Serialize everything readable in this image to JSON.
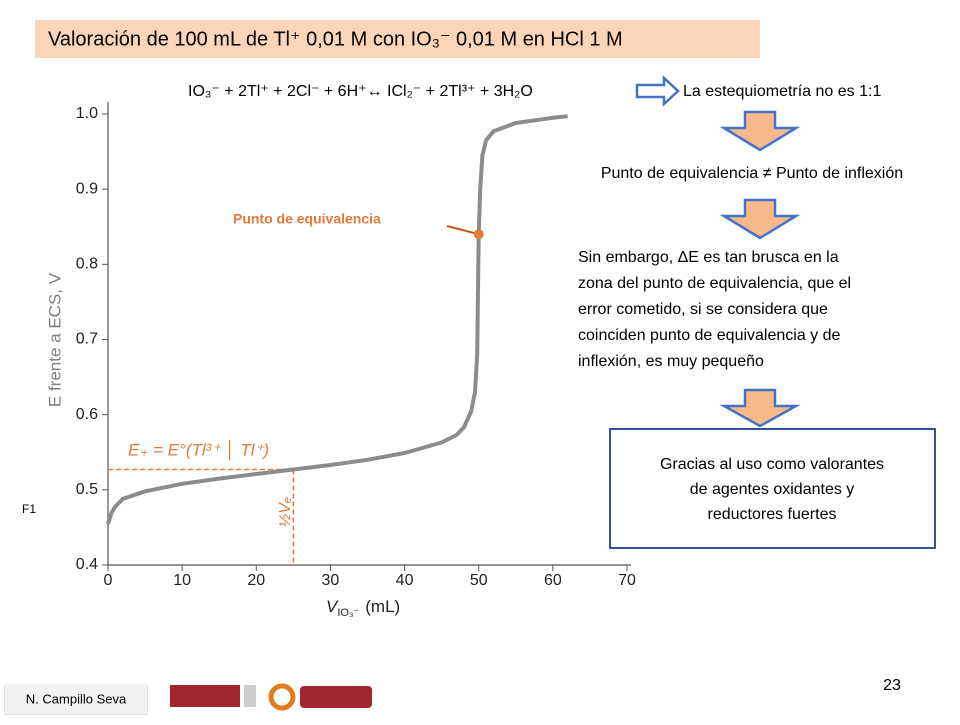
{
  "slide": {
    "title": "Valoración de 100 mL de Tl⁺ 0,01 M con IO₃⁻ 0,01 M en HCl 1 M",
    "equation": "IO₃⁻ + 2Tl⁺ + 2Cl⁻ + 6H⁺↔ ICl₂⁻ + 2Tl³⁺ + 3H₂O",
    "statement": "La estequiometría no es 1:1",
    "step1": "Punto de equivalencia ≠ Punto de inflexión",
    "step2": [
      "Sin embargo, ΔE es tan brusca en la",
      "zona del punto de equivalencia, que el",
      "error cometido, si se considera que",
      "coinciden punto de equivalencia y de",
      "inflexión, es muy pequeño"
    ],
    "conclusion": [
      "Gracias al uso como valorantes",
      "de agentes oxidantes y",
      "reductores fuertes"
    ],
    "figure_tag": "F1",
    "author": "N. Campillo Seva",
    "page": "23"
  },
  "chart_data": {
    "type": "line",
    "y_label": "E frente a ECS, V",
    "x_label": {
      "main": "V",
      "sub": "IO₃⁻",
      "unit": "(mL)"
    },
    "x": [
      0,
      0.5,
      1,
      2,
      5,
      10,
      15,
      20,
      25,
      30,
      35,
      40,
      45,
      47,
      48,
      49,
      49.5,
      49.8,
      50,
      50.2,
      50.5,
      51,
      52,
      55,
      60,
      62
    ],
    "series": [
      {
        "color": "#8c8c8c",
        "values": [
          0.455,
          0.47,
          0.478,
          0.488,
          0.498,
          0.508,
          0.515,
          0.521,
          0.527,
          0.533,
          0.54,
          0.549,
          0.563,
          0.573,
          0.583,
          0.605,
          0.63,
          0.68,
          0.84,
          0.9,
          0.945,
          0.965,
          0.977,
          0.988,
          0.995,
          0.997
        ]
      }
    ],
    "xlim": [
      0,
      70
    ],
    "ylim": [
      0.4,
      1.0
    ],
    "xticks": [
      0,
      10,
      20,
      30,
      40,
      50,
      60,
      70
    ],
    "yticks": [
      0.4,
      0.5,
      0.6,
      0.7,
      0.8,
      0.9,
      {
        "value": 1,
        "label": "1.0"
      }
    ],
    "equivalence": {
      "label": "Punto de equivalencia",
      "x": 50,
      "y": 0.84
    },
    "half_point": {
      "label": "E₊ = E°(Tl³⁺ │ Tl⁺)",
      "x_label": "½Vₑ",
      "x": 25,
      "y": 0.527
    }
  }
}
